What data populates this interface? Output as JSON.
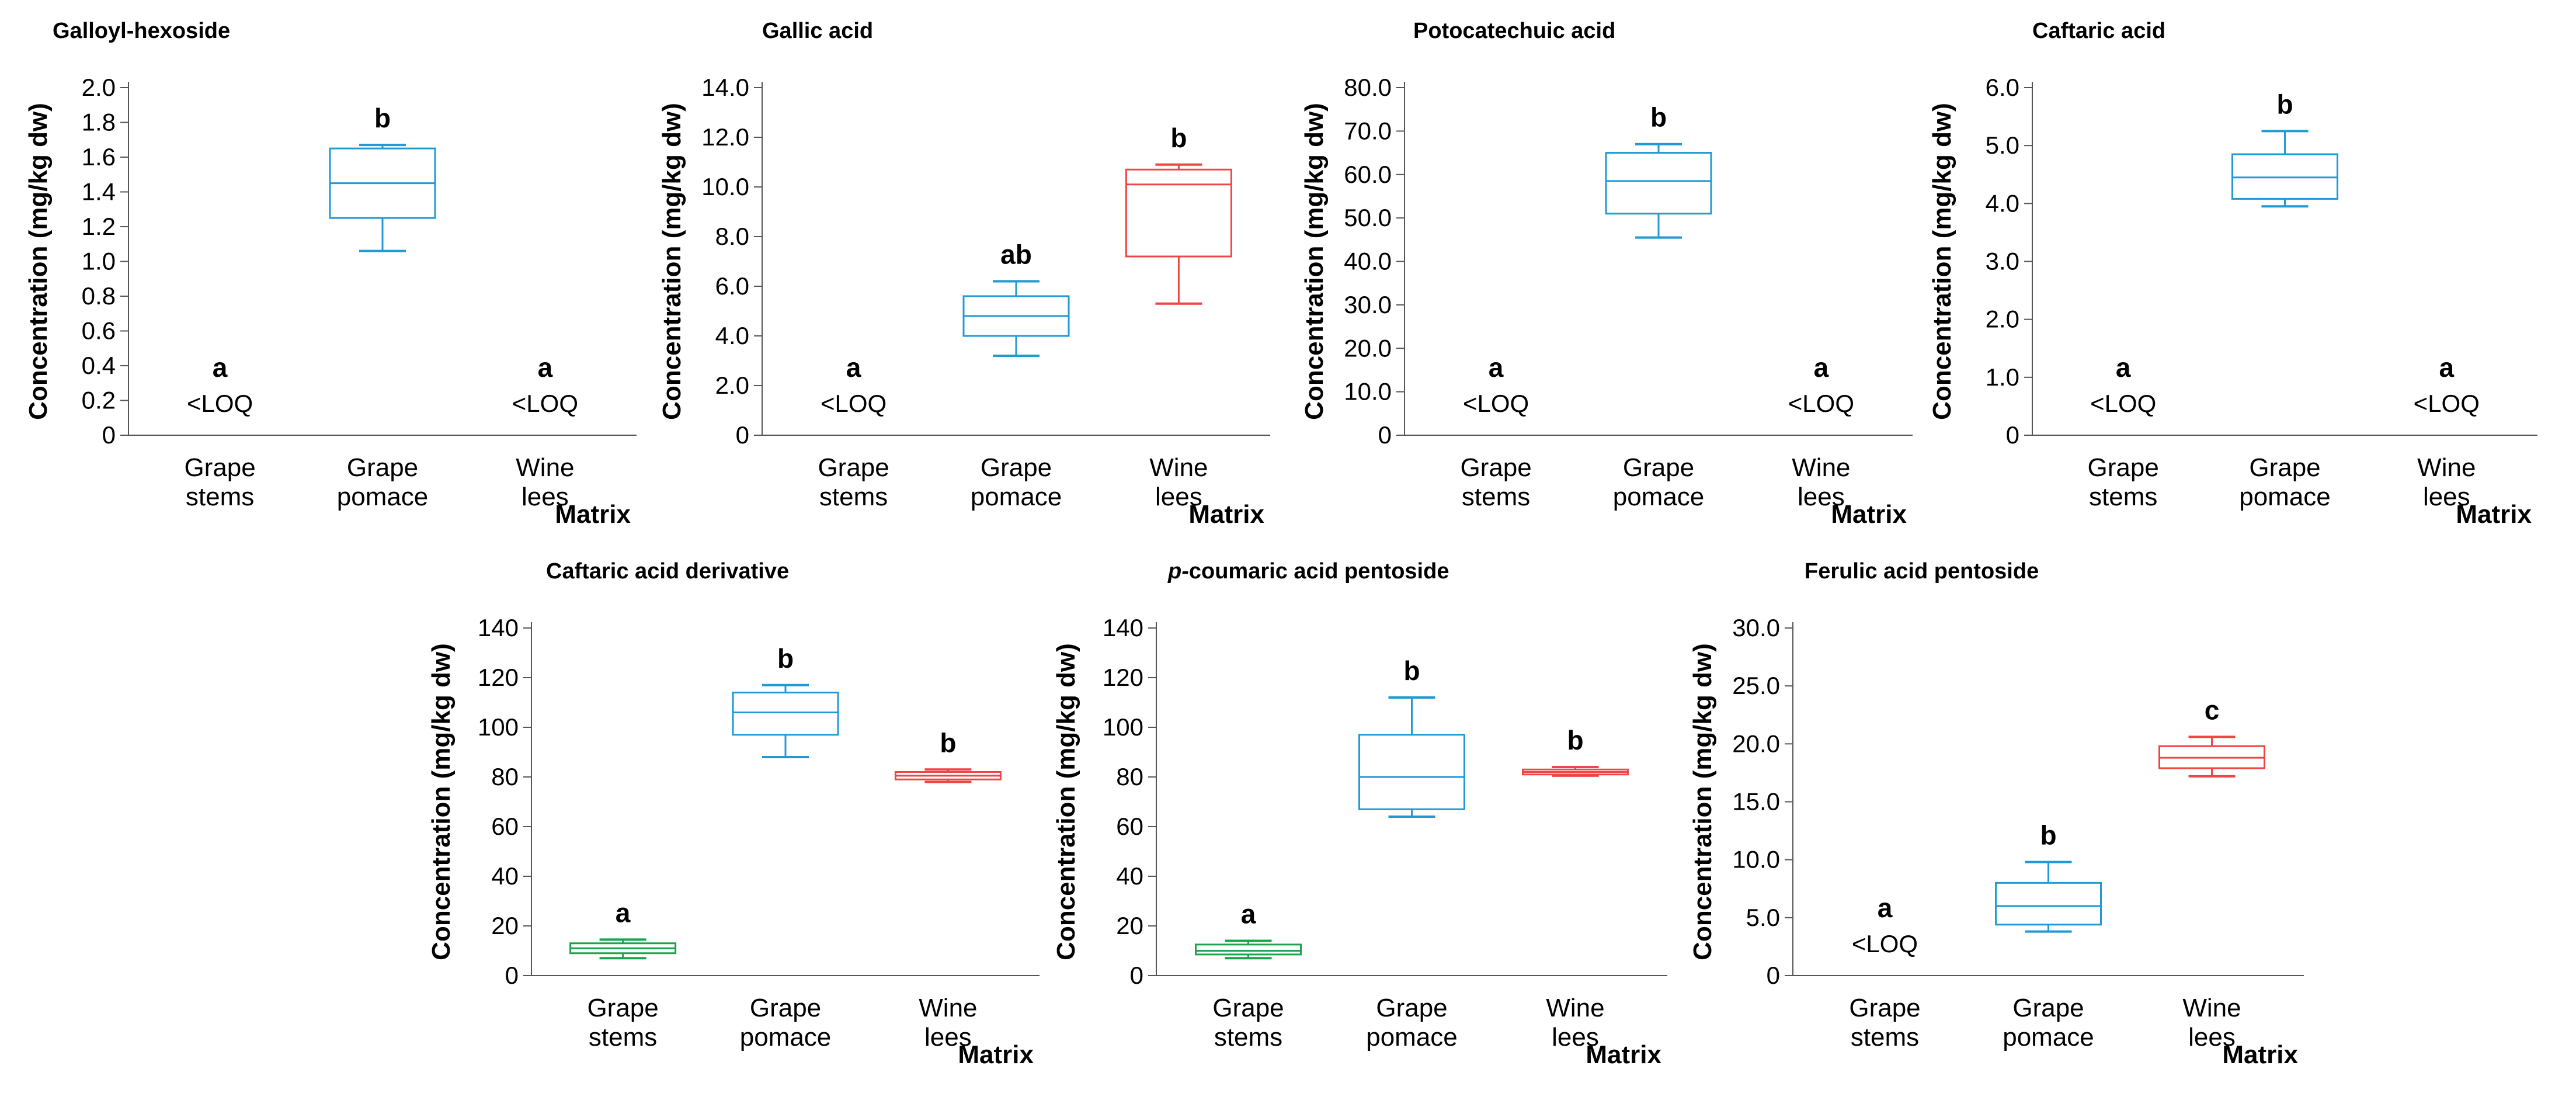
{
  "chart_data": [
    {
      "type": "box",
      "title": "Galloyl-hexoside",
      "title_italic_prefix": "",
      "xlabel": "Matrix",
      "ylabel": "Concentration (mg/kg dw)",
      "ylim": [
        0,
        2.0
      ],
      "y_ticks": [
        0,
        0.2,
        0.4,
        0.6,
        0.8,
        1.0,
        1.2,
        1.4,
        1.6,
        1.8,
        2.0
      ],
      "y_tick_labels": [
        "0",
        "0.2",
        "0.4",
        "0.6",
        "0.8",
        "1.0",
        "1.2",
        "1.4",
        "1.6",
        "1.8",
        "2.0"
      ],
      "categories": [
        {
          "label_line1": "Grape",
          "label_line2": "stems",
          "color": "#1f9ad6",
          "letter": "a",
          "loq": "<LOQ",
          "box": null
        },
        {
          "label_line1": "Grape",
          "label_line2": "pomace",
          "color": "#1f9ad6",
          "letter": "b",
          "loq": "",
          "box": {
            "min": 1.06,
            "q1": 1.25,
            "median": 1.45,
            "q3": 1.65,
            "max": 1.67
          }
        },
        {
          "label_line1": "Wine",
          "label_line2": "lees",
          "color": "#f04545",
          "letter": "a",
          "loq": "<LOQ",
          "box": null
        }
      ]
    },
    {
      "type": "box",
      "title": "Gallic acid",
      "title_italic_prefix": "",
      "xlabel": "Matrix",
      "ylabel": "Concentration (mg/kg dw)",
      "ylim": [
        0,
        14.0
      ],
      "y_ticks": [
        0,
        2,
        4,
        6,
        8,
        10,
        12,
        14
      ],
      "y_tick_labels": [
        "0",
        "2.0",
        "4.0",
        "6.0",
        "8.0",
        "10.0",
        "12.0",
        "14.0"
      ],
      "categories": [
        {
          "label_line1": "Grape",
          "label_line2": "stems",
          "color": "#1f9ad6",
          "letter": "a",
          "loq": "<LOQ",
          "box": null
        },
        {
          "label_line1": "Grape",
          "label_line2": "pomace",
          "color": "#1f9ad6",
          "letter": "ab",
          "loq": "",
          "box": {
            "min": 3.2,
            "q1": 4.0,
            "median": 4.8,
            "q3": 5.6,
            "max": 6.2
          }
        },
        {
          "label_line1": "Wine",
          "label_line2": "lees",
          "color": "#f04545",
          "letter": "b",
          "loq": "",
          "box": {
            "min": 5.3,
            "q1": 7.2,
            "median": 10.1,
            "q3": 10.7,
            "max": 10.9
          }
        }
      ]
    },
    {
      "type": "box",
      "title": "Potocatechuic acid",
      "title_italic_prefix": "",
      "xlabel": "Matrix",
      "ylabel": "Concentration (mg/kg dw)",
      "ylim": [
        0,
        80.0
      ],
      "y_ticks": [
        0,
        10,
        20,
        30,
        40,
        50,
        60,
        70,
        80
      ],
      "y_tick_labels": [
        "0",
        "10.0",
        "20.0",
        "30.0",
        "40.0",
        "50.0",
        "60.0",
        "70.0",
        "80.0"
      ],
      "categories": [
        {
          "label_line1": "Grape",
          "label_line2": "stems",
          "color": "#1f9ad6",
          "letter": "a",
          "loq": "<LOQ",
          "box": null
        },
        {
          "label_line1": "Grape",
          "label_line2": "pomace",
          "color": "#1f9ad6",
          "letter": "b",
          "loq": "",
          "box": {
            "min": 45.5,
            "q1": 51.0,
            "median": 58.5,
            "q3": 65.0,
            "max": 67.0
          }
        },
        {
          "label_line1": "Wine",
          "label_line2": "lees",
          "color": "#f04545",
          "letter": "a",
          "loq": "<LOQ",
          "box": null
        }
      ]
    },
    {
      "type": "box",
      "title": "Caftaric acid",
      "title_italic_prefix": "",
      "xlabel": "Matrix",
      "ylabel": "Concentration (mg/kg dw)",
      "ylim": [
        0,
        6.0
      ],
      "y_ticks": [
        0,
        1,
        2,
        3,
        4,
        5,
        6
      ],
      "y_tick_labels": [
        "0",
        "1.0",
        "2.0",
        "3.0",
        "4.0",
        "5.0",
        "6.0"
      ],
      "categories": [
        {
          "label_line1": "Grape",
          "label_line2": "stems",
          "color": "#1f9ad6",
          "letter": "a",
          "loq": "<LOQ",
          "box": null
        },
        {
          "label_line1": "Grape",
          "label_line2": "pomace",
          "color": "#1f9ad6",
          "letter": "b",
          "loq": "",
          "box": {
            "min": 3.95,
            "q1": 4.08,
            "median": 4.45,
            "q3": 4.85,
            "max": 5.25
          }
        },
        {
          "label_line1": "Wine",
          "label_line2": "lees",
          "color": "#f04545",
          "letter": "a",
          "loq": "<LOQ",
          "box": null
        }
      ]
    },
    {
      "type": "box",
      "title": "Caftaric acid derivative",
      "title_italic_prefix": "",
      "xlabel": "Matrix",
      "ylabel": "Concentration (mg/kg dw)",
      "ylim": [
        0,
        140
      ],
      "y_ticks": [
        0,
        20,
        40,
        60,
        80,
        100,
        120,
        140
      ],
      "y_tick_labels": [
        "0",
        "20",
        "40",
        "60",
        "80",
        "100",
        "120",
        "140"
      ],
      "categories": [
        {
          "label_line1": "Grape",
          "label_line2": "stems",
          "color": "#1aa34a",
          "letter": "a",
          "loq": "",
          "box": {
            "min": 7,
            "q1": 9,
            "median": 11,
            "q3": 13,
            "max": 14.5
          }
        },
        {
          "label_line1": "Grape",
          "label_line2": "pomace",
          "color": "#1f9ad6",
          "letter": "b",
          "loq": "",
          "box": {
            "min": 88,
            "q1": 97,
            "median": 106,
            "q3": 114,
            "max": 117
          }
        },
        {
          "label_line1": "Wine",
          "label_line2": "lees",
          "color": "#f04545",
          "letter": "b",
          "loq": "",
          "box": {
            "min": 78,
            "q1": 79,
            "median": 80.5,
            "q3": 82,
            "max": 83
          }
        }
      ]
    },
    {
      "type": "box",
      "title": "coumaric acid pentoside",
      "title_italic_prefix": "p-",
      "xlabel": "Matrix",
      "ylabel": "Concentration (mg/kg dw)",
      "ylim": [
        0,
        140
      ],
      "y_ticks": [
        0,
        20,
        40,
        60,
        80,
        100,
        120,
        140
      ],
      "y_tick_labels": [
        "0",
        "20",
        "40",
        "60",
        "80",
        "100",
        "120",
        "140"
      ],
      "categories": [
        {
          "label_line1": "Grape",
          "label_line2": "stems",
          "color": "#1aa34a",
          "letter": "a",
          "loq": "",
          "box": {
            "min": 7,
            "q1": 8.5,
            "median": 10,
            "q3": 12.5,
            "max": 14
          }
        },
        {
          "label_line1": "Grape",
          "label_line2": "pomace",
          "color": "#1f9ad6",
          "letter": "b",
          "loq": "",
          "box": {
            "min": 64,
            "q1": 67,
            "median": 80,
            "q3": 97,
            "max": 112
          }
        },
        {
          "label_line1": "Wine",
          "label_line2": "lees",
          "color": "#f04545",
          "letter": "b",
          "loq": "",
          "box": {
            "min": 80.5,
            "q1": 81,
            "median": 82,
            "q3": 83,
            "max": 84
          }
        }
      ]
    },
    {
      "type": "box",
      "title": "Ferulic acid pentoside",
      "title_italic_prefix": "",
      "xlabel": "Matrix",
      "ylabel": "Concentration (mg/kg dw)",
      "ylim": [
        0,
        30.0
      ],
      "y_ticks": [
        0,
        5,
        10,
        15,
        20,
        25,
        30
      ],
      "y_tick_labels": [
        "0",
        "5.0",
        "10.0",
        "15.0",
        "20.0",
        "25.0",
        "30.0"
      ],
      "categories": [
        {
          "label_line1": "Grape",
          "label_line2": "stems",
          "color": "#1f9ad6",
          "letter": "a",
          "loq": "<LOQ",
          "box": null
        },
        {
          "label_line1": "Grape",
          "label_line2": "pomace",
          "color": "#1f9ad6",
          "letter": "b",
          "loq": "",
          "box": {
            "min": 3.8,
            "q1": 4.4,
            "median": 6.0,
            "q3": 8.0,
            "max": 9.8
          }
        },
        {
          "label_line1": "Wine",
          "label_line2": "lees",
          "color": "#f04545",
          "letter": "c",
          "loq": "",
          "box": {
            "min": 17.2,
            "q1": 17.9,
            "median": 18.8,
            "q3": 19.8,
            "max": 20.6
          }
        }
      ]
    }
  ]
}
